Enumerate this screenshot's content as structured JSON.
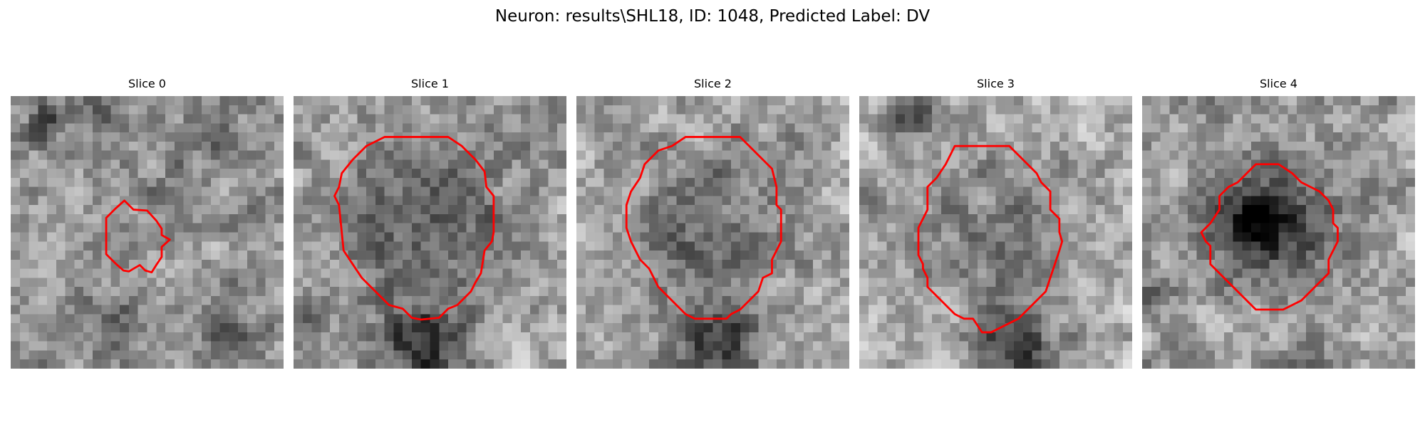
{
  "figure": {
    "title": "Neuron: results\\SHL18, ID: 1048, Predicted Label: DV"
  },
  "colors": {
    "contour": "#ff0000",
    "background": "#ffffff"
  },
  "panels": [
    {
      "title": "Slice 0",
      "seed": 11,
      "base": 150,
      "dark_blobs": [
        [
          4,
          3,
          2.2,
          70
        ],
        [
          10,
          2,
          2.5,
          50
        ],
        [
          22,
          5,
          3,
          55
        ],
        [
          11,
          25,
          4,
          45
        ],
        [
          24,
          26,
          4,
          40
        ],
        [
          18,
          11,
          4,
          25
        ]
      ],
      "contour": [
        [
          12.5,
          11.5
        ],
        [
          13.5,
          12.5
        ],
        [
          15,
          12.6
        ],
        [
          16,
          13.7
        ],
        [
          16.6,
          14.6
        ],
        [
          16.6,
          15.3
        ],
        [
          17.5,
          15.8
        ],
        [
          16.6,
          16.6
        ],
        [
          16.6,
          17.7
        ],
        [
          16,
          18.6
        ],
        [
          15.5,
          19.4
        ],
        [
          14.8,
          19.2
        ],
        [
          14.2,
          18.6
        ],
        [
          13.5,
          19
        ],
        [
          13,
          19.3
        ],
        [
          12.4,
          19.2
        ],
        [
          11.5,
          18.4
        ],
        [
          10.5,
          17.4
        ],
        [
          10.5,
          15.3
        ],
        [
          10.5,
          13.4
        ],
        [
          11.5,
          12.4
        ]
      ]
    },
    {
      "title": "Slice 1",
      "seed": 23,
      "base": 165,
      "dark_blobs": [
        [
          14,
          14,
          9.5,
          75
        ],
        [
          14,
          28,
          5,
          110
        ],
        [
          1,
          24,
          2,
          60
        ],
        [
          25,
          3,
          3,
          30
        ]
      ],
      "contour": [
        [
          10,
          4.5
        ],
        [
          17,
          4.5
        ],
        [
          18.5,
          5.5
        ],
        [
          20,
          7
        ],
        [
          21,
          8.3
        ],
        [
          21.2,
          10
        ],
        [
          22,
          11
        ],
        [
          22,
          15
        ],
        [
          21.8,
          16
        ],
        [
          21,
          17
        ],
        [
          20.6,
          19.5
        ],
        [
          20,
          20.5
        ],
        [
          19.5,
          21.5
        ],
        [
          18,
          23
        ],
        [
          17,
          23.4
        ],
        [
          16,
          24.4
        ],
        [
          14,
          24.6
        ],
        [
          13,
          24.4
        ],
        [
          12,
          23.4
        ],
        [
          10.5,
          23
        ],
        [
          9.5,
          22
        ],
        [
          8.5,
          21
        ],
        [
          7.5,
          20
        ],
        [
          6.5,
          18.5
        ],
        [
          5.5,
          17
        ],
        [
          5.3,
          15
        ],
        [
          5,
          12
        ],
        [
          4.5,
          11
        ],
        [
          5,
          10
        ],
        [
          5.3,
          8.5
        ],
        [
          6.5,
          7
        ],
        [
          8,
          5.5
        ]
      ]
    },
    {
      "title": "Slice 2",
      "seed": 37,
      "base": 170,
      "dark_blobs": [
        [
          14.5,
          14.5,
          9.5,
          65
        ],
        [
          16,
          28,
          5,
          115
        ],
        [
          26,
          4,
          2.5,
          40
        ]
      ],
      "contour": [
        [
          12,
          4.5
        ],
        [
          18,
          4.5
        ],
        [
          19,
          5.5
        ],
        [
          20.5,
          7
        ],
        [
          21.5,
          8
        ],
        [
          22,
          10
        ],
        [
          22,
          12
        ],
        [
          22.5,
          12.5
        ],
        [
          22.5,
          16
        ],
        [
          22,
          17
        ],
        [
          21.5,
          18
        ],
        [
          21.5,
          19.5
        ],
        [
          20.5,
          20
        ],
        [
          20,
          21.5
        ],
        [
          19,
          22.5
        ],
        [
          18,
          23.5
        ],
        [
          17,
          24
        ],
        [
          16.5,
          24.5
        ],
        [
          13,
          24.5
        ],
        [
          12,
          24
        ],
        [
          11,
          23
        ],
        [
          10,
          22
        ],
        [
          9,
          21
        ],
        [
          8,
          19
        ],
        [
          7,
          18
        ],
        [
          6,
          16
        ],
        [
          5.5,
          14.5
        ],
        [
          5.5,
          12
        ],
        [
          6,
          10.5
        ],
        [
          7,
          9
        ],
        [
          7.5,
          7.5
        ],
        [
          9,
          6
        ],
        [
          10.5,
          5.5
        ]
      ]
    },
    {
      "title": "Slice 3",
      "seed": 51,
      "base": 172,
      "dark_blobs": [
        [
          15,
          15.5,
          9,
          55
        ],
        [
          17,
          28,
          4.5,
          120
        ],
        [
          6,
          2,
          2.5,
          90
        ]
      ],
      "contour": [
        [
          10.5,
          5.5
        ],
        [
          16.5,
          5.5
        ],
        [
          17.5,
          6.5
        ],
        [
          18.5,
          7.5
        ],
        [
          19.5,
          8.5
        ],
        [
          20,
          9.5
        ],
        [
          21,
          10.5
        ],
        [
          21,
          12.5
        ],
        [
          22,
          13.5
        ],
        [
          22,
          15
        ],
        [
          22.3,
          16
        ],
        [
          22,
          17
        ],
        [
          21.5,
          18.5
        ],
        [
          21,
          20
        ],
        [
          20.5,
          21.5
        ],
        [
          19.5,
          22.5
        ],
        [
          18.5,
          23.5
        ],
        [
          17.5,
          24.5
        ],
        [
          16.5,
          25
        ],
        [
          15.5,
          25.5
        ],
        [
          14.5,
          26
        ],
        [
          13.5,
          26
        ],
        [
          12.5,
          24.5
        ],
        [
          11.5,
          24.5
        ],
        [
          10.5,
          24
        ],
        [
          9.5,
          23
        ],
        [
          8.5,
          22
        ],
        [
          7.5,
          21
        ],
        [
          7.5,
          20
        ],
        [
          7,
          19
        ],
        [
          7,
          18.5
        ],
        [
          6.5,
          17.5
        ],
        [
          6.5,
          16.5
        ],
        [
          6.5,
          14.5
        ],
        [
          7,
          13.5
        ],
        [
          7.5,
          12.5
        ],
        [
          7.5,
          10
        ],
        [
          8.5,
          9
        ],
        [
          9.5,
          7.5
        ]
      ]
    },
    {
      "title": "Slice 4",
      "seed": 67,
      "base": 160,
      "dark_blobs": [
        [
          13.5,
          14,
          7,
          105
        ],
        [
          13,
          13.5,
          3,
          55
        ],
        [
          17,
          29,
          4,
          20
        ],
        [
          1,
          22,
          3,
          40
        ]
      ],
      "contour": [
        [
          12.5,
          7.5
        ],
        [
          15,
          7.5
        ],
        [
          16.5,
          8.5
        ],
        [
          17.5,
          9.5
        ],
        [
          19.5,
          10.5
        ],
        [
          20.5,
          11.5
        ],
        [
          21,
          12.5
        ],
        [
          21,
          14
        ],
        [
          21.5,
          14.5
        ],
        [
          21.5,
          16
        ],
        [
          21,
          17
        ],
        [
          20.5,
          18
        ],
        [
          20.5,
          19.5
        ],
        [
          20,
          20
        ],
        [
          19.5,
          20.5
        ],
        [
          18.5,
          21.5
        ],
        [
          17.5,
          22.5
        ],
        [
          16.5,
          23
        ],
        [
          15.5,
          23.5
        ],
        [
          12.5,
          23.5
        ],
        [
          11.5,
          22.5
        ],
        [
          10.5,
          21.5
        ],
        [
          9.5,
          20.5
        ],
        [
          8.5,
          19.5
        ],
        [
          7.5,
          18.5
        ],
        [
          7.5,
          16.5
        ],
        [
          7,
          16
        ],
        [
          6.5,
          15
        ],
        [
          7.5,
          14
        ],
        [
          8.5,
          12.5
        ],
        [
          8.5,
          11
        ],
        [
          9.5,
          10
        ],
        [
          10.5,
          9.5
        ],
        [
          11.5,
          8.5
        ]
      ]
    }
  ]
}
